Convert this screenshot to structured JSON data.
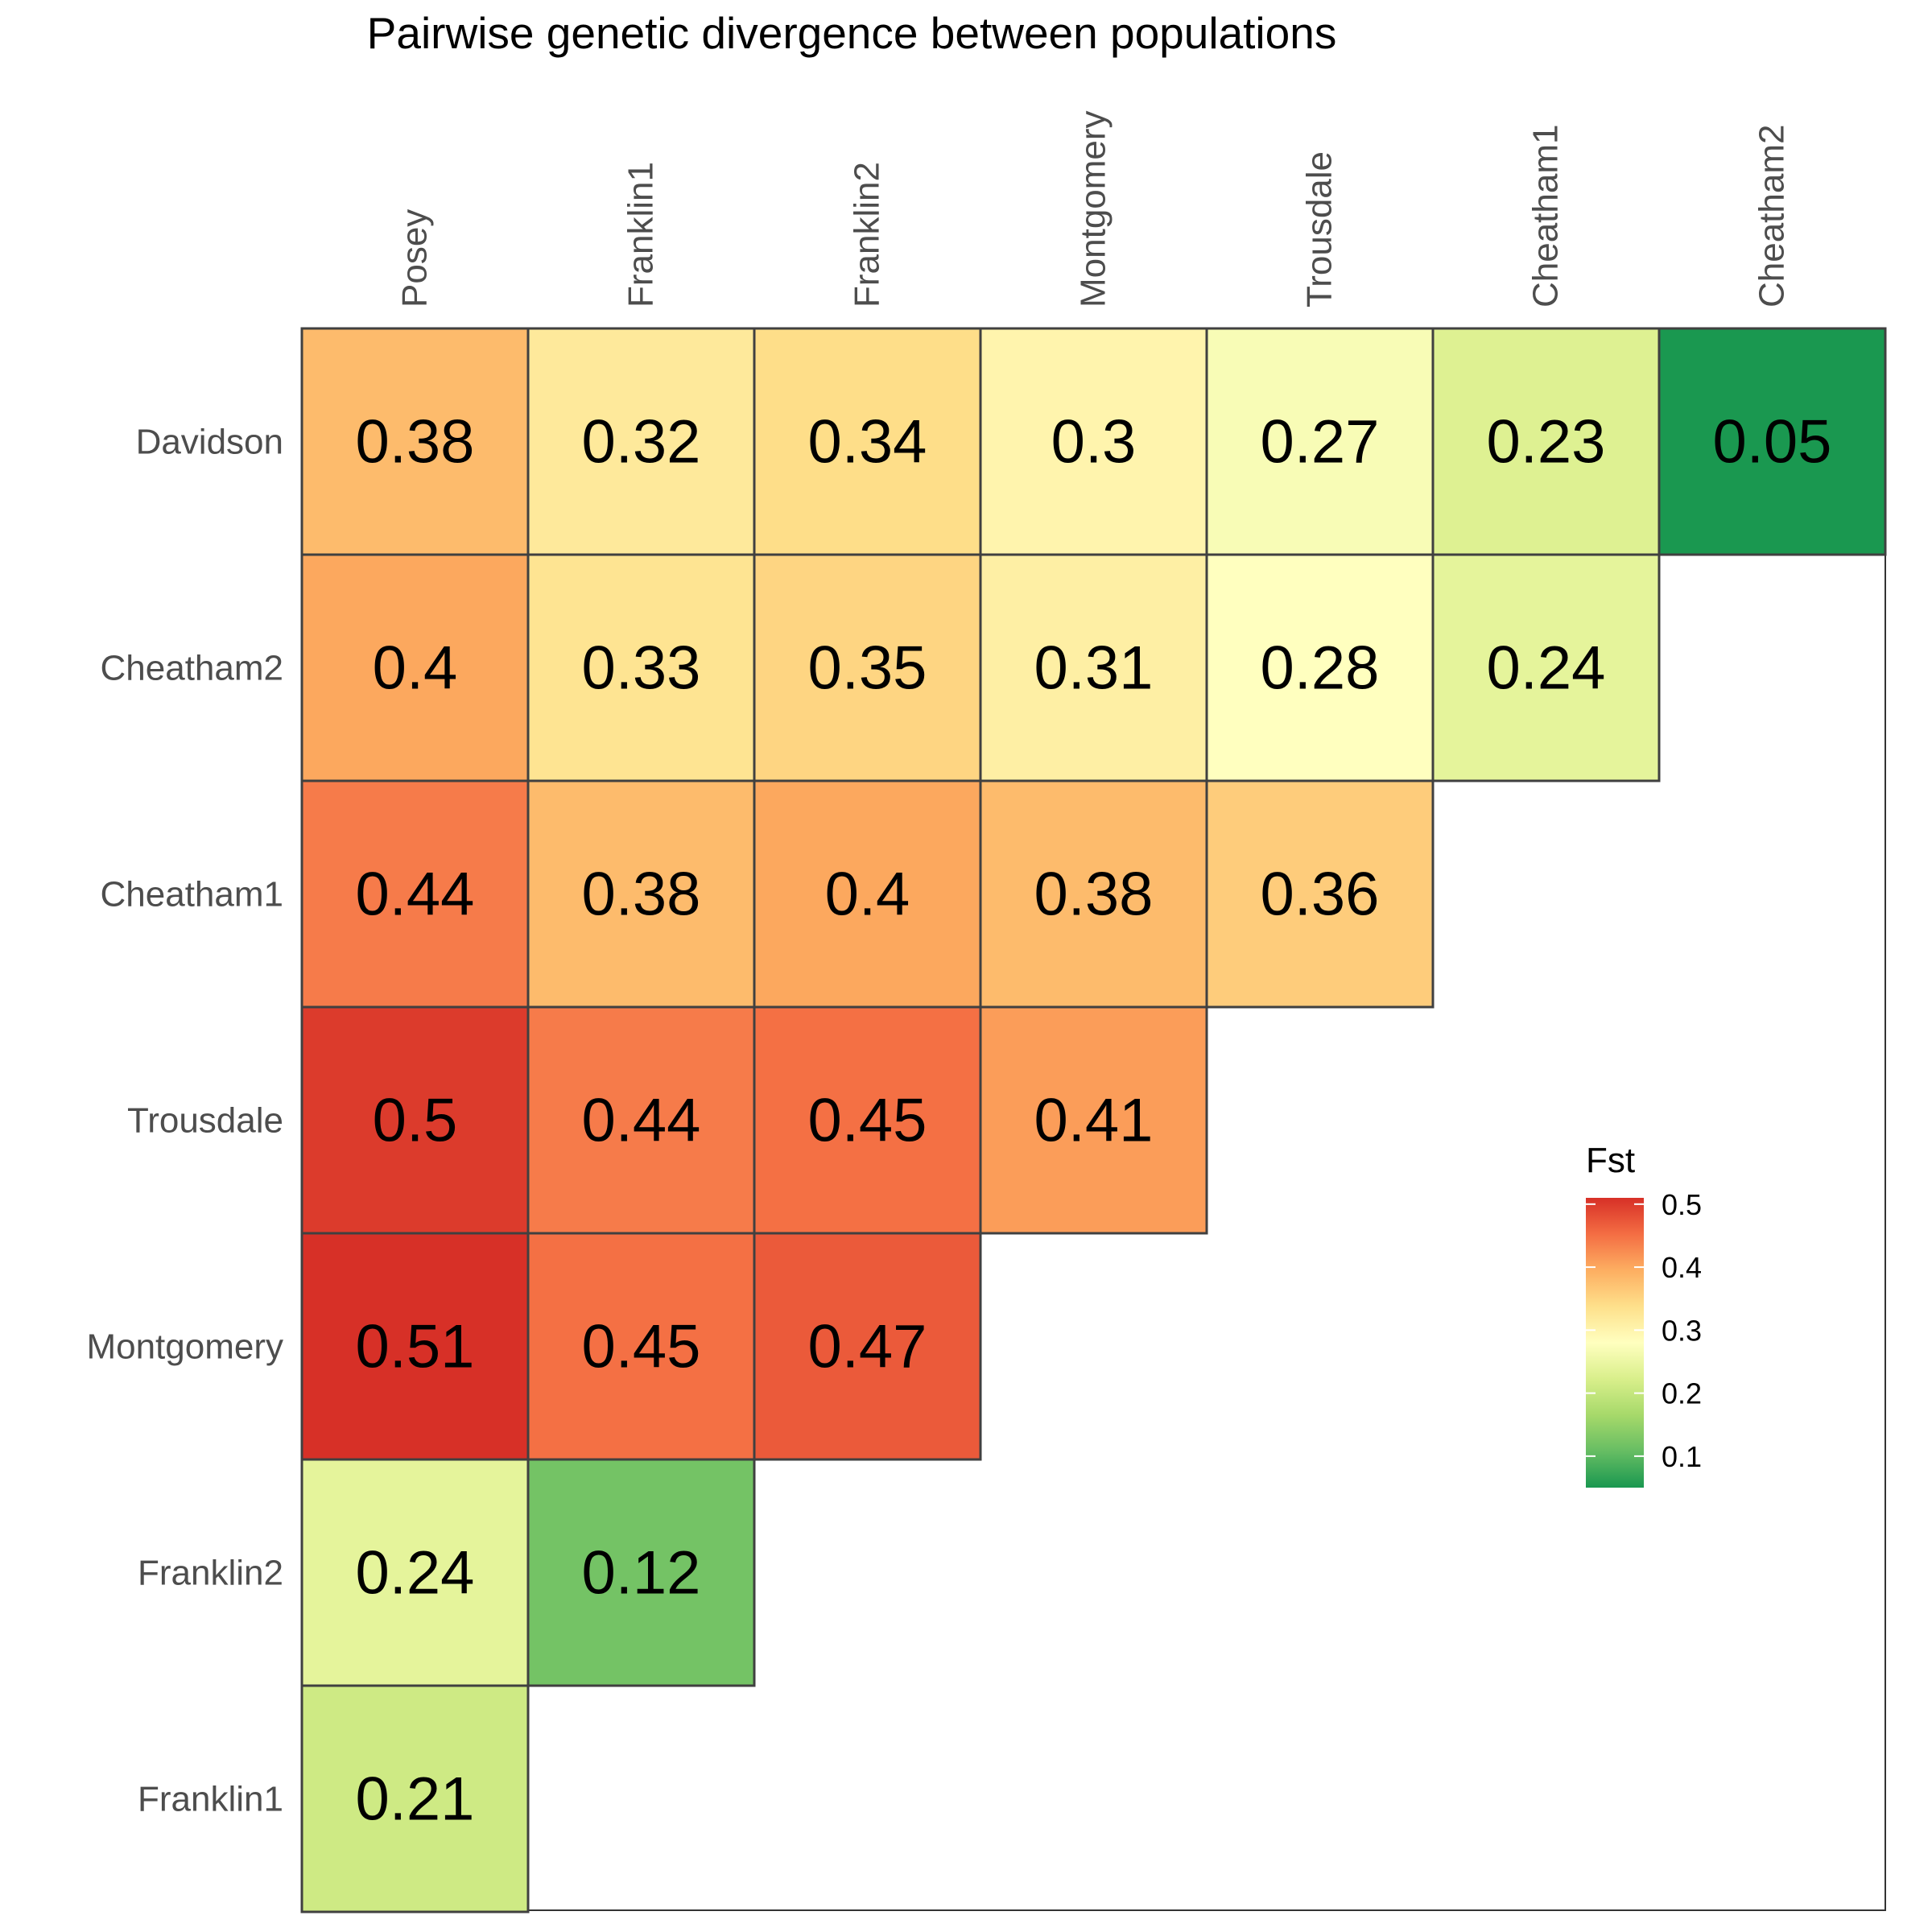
{
  "chart_data": {
    "type": "heatmap",
    "title": "Pairwise genetic divergence between populations",
    "x_categories": [
      "Posey",
      "Franklin1",
      "Franklin2",
      "Montgomery",
      "Trousdale",
      "Cheatham1",
      "Cheatham2"
    ],
    "y_categories": [
      "Davidson",
      "Cheatham2",
      "Cheatham1",
      "Trousdale",
      "Montgomery",
      "Franklin2",
      "Franklin1"
    ],
    "values": [
      [
        0.38,
        0.32,
        0.34,
        0.3,
        0.27,
        0.23,
        0.05
      ],
      [
        0.4,
        0.33,
        0.35,
        0.31,
        0.28,
        0.24,
        null
      ],
      [
        0.44,
        0.38,
        0.4,
        0.38,
        0.36,
        null,
        null
      ],
      [
        0.5,
        0.44,
        0.45,
        0.41,
        null,
        null,
        null
      ],
      [
        0.51,
        0.45,
        0.47,
        null,
        null,
        null,
        null
      ],
      [
        0.24,
        0.12,
        null,
        null,
        null,
        null,
        null
      ],
      [
        0.21,
        null,
        null,
        null,
        null,
        null,
        null
      ]
    ],
    "value_labels": [
      [
        "0.38",
        "0.32",
        "0.34",
        "0.3",
        "0.27",
        "0.23",
        "0.05"
      ],
      [
        "0.4",
        "0.33",
        "0.35",
        "0.31",
        "0.28",
        "0.24",
        ""
      ],
      [
        "0.44",
        "0.38",
        "0.4",
        "0.38",
        "0.36",
        "",
        ""
      ],
      [
        "0.5",
        "0.44",
        "0.45",
        "0.41",
        "",
        "",
        ""
      ],
      [
        "0.51",
        "0.45",
        "0.47",
        "",
        "",
        "",
        ""
      ],
      [
        "0.24",
        "0.12",
        "",
        "",
        "",
        "",
        ""
      ],
      [
        "0.21",
        "",
        "",
        "",
        "",
        "",
        ""
      ]
    ],
    "legend": {
      "title": "Fst",
      "ticks": [
        0.1,
        0.2,
        0.3,
        0.4,
        0.5
      ],
      "tick_labels": [
        "0.1",
        "0.2",
        "0.3",
        "0.4",
        "0.5"
      ],
      "range": [
        0.05,
        0.51
      ],
      "placement": "right"
    },
    "color_scale": {
      "low": "#1a9850",
      "stops": [
        "#1a9850",
        "#66bd63",
        "#a6d96a",
        "#d9ef8b",
        "#ffffbf",
        "#fee08b",
        "#fdae61",
        "#f46d43",
        "#d73027"
      ]
    },
    "grid": false
  }
}
